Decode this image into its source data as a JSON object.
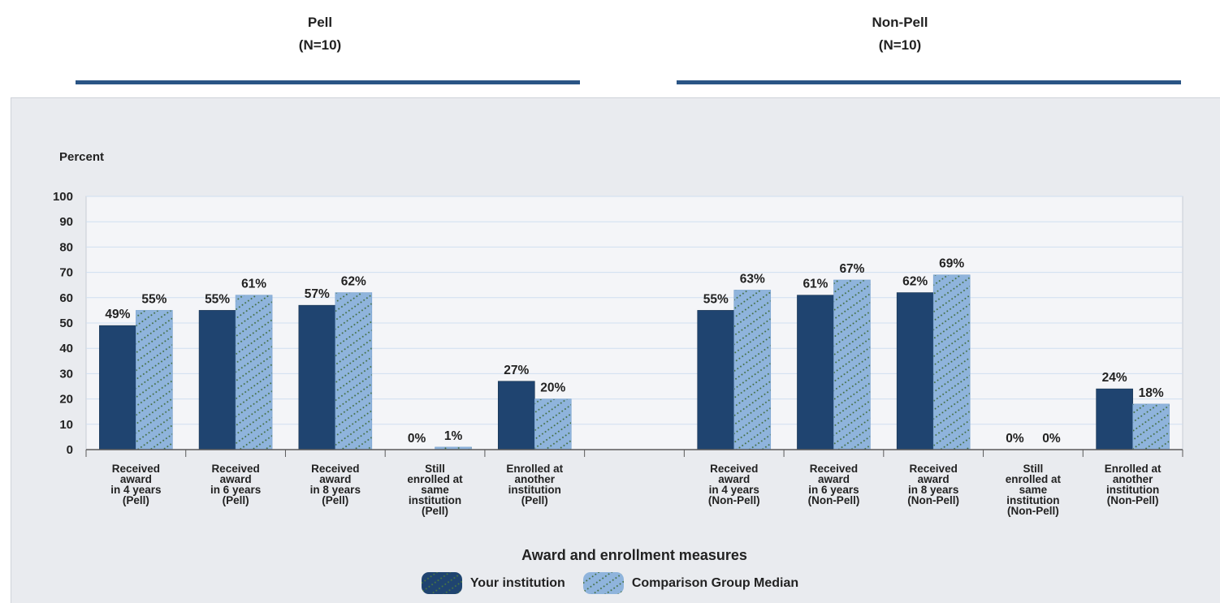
{
  "groups": [
    {
      "title": "Pell",
      "n": "(N=10)"
    },
    {
      "title": "Non-Pell",
      "n": "(N=10)"
    }
  ],
  "chart_data": {
    "type": "bar",
    "title": "",
    "ylabel": "Percent",
    "xlabel": "Award and enrollment measures",
    "ylim": [
      0,
      100
    ],
    "yticks": [
      0,
      10,
      20,
      30,
      40,
      50,
      60,
      70,
      80,
      90,
      100
    ],
    "grid": true,
    "legend_position": "bottom",
    "categories": [
      [
        "Received",
        "award",
        "in 4 years",
        "(Pell)"
      ],
      [
        "Received",
        "award",
        "in 6 years",
        "(Pell)"
      ],
      [
        "Received",
        "award",
        "in 8 years",
        "(Pell)"
      ],
      [
        "Still",
        "enrolled at",
        "same",
        "institution",
        "(Pell)"
      ],
      [
        "Enrolled at",
        "another",
        "institution",
        "(Pell)"
      ],
      [],
      [
        "Received",
        "award",
        "in 4 years",
        "(Non-Pell)"
      ],
      [
        "Received",
        "award",
        "in 6 years",
        "(Non-Pell)"
      ],
      [
        "Received",
        "award",
        "in 8 years",
        "(Non-Pell)"
      ],
      [
        "Still",
        "enrolled at",
        "same",
        "institution",
        "(Non-Pell)"
      ],
      [
        "Enrolled at",
        "another",
        "institution",
        "(Non-Pell)"
      ]
    ],
    "series": [
      {
        "name": "Your institution",
        "color": "#1f4470",
        "pattern": "none",
        "values": [
          49,
          55,
          57,
          0,
          27,
          null,
          55,
          61,
          62,
          0,
          24
        ],
        "labels": [
          "49%",
          "55%",
          "57%",
          "0%",
          "27%",
          null,
          "55%",
          "61%",
          "62%",
          "0%",
          "24%"
        ]
      },
      {
        "name": "Comparison Group Median",
        "color": "#8fb4dc",
        "pattern": "dotted-diagonal",
        "values": [
          55,
          61,
          62,
          1,
          20,
          null,
          63,
          67,
          69,
          0,
          18
        ],
        "labels": [
          "55%",
          "61%",
          "62%",
          "1%",
          "20%",
          null,
          "63%",
          "67%",
          "69%",
          "0%",
          "18%"
        ]
      }
    ]
  }
}
